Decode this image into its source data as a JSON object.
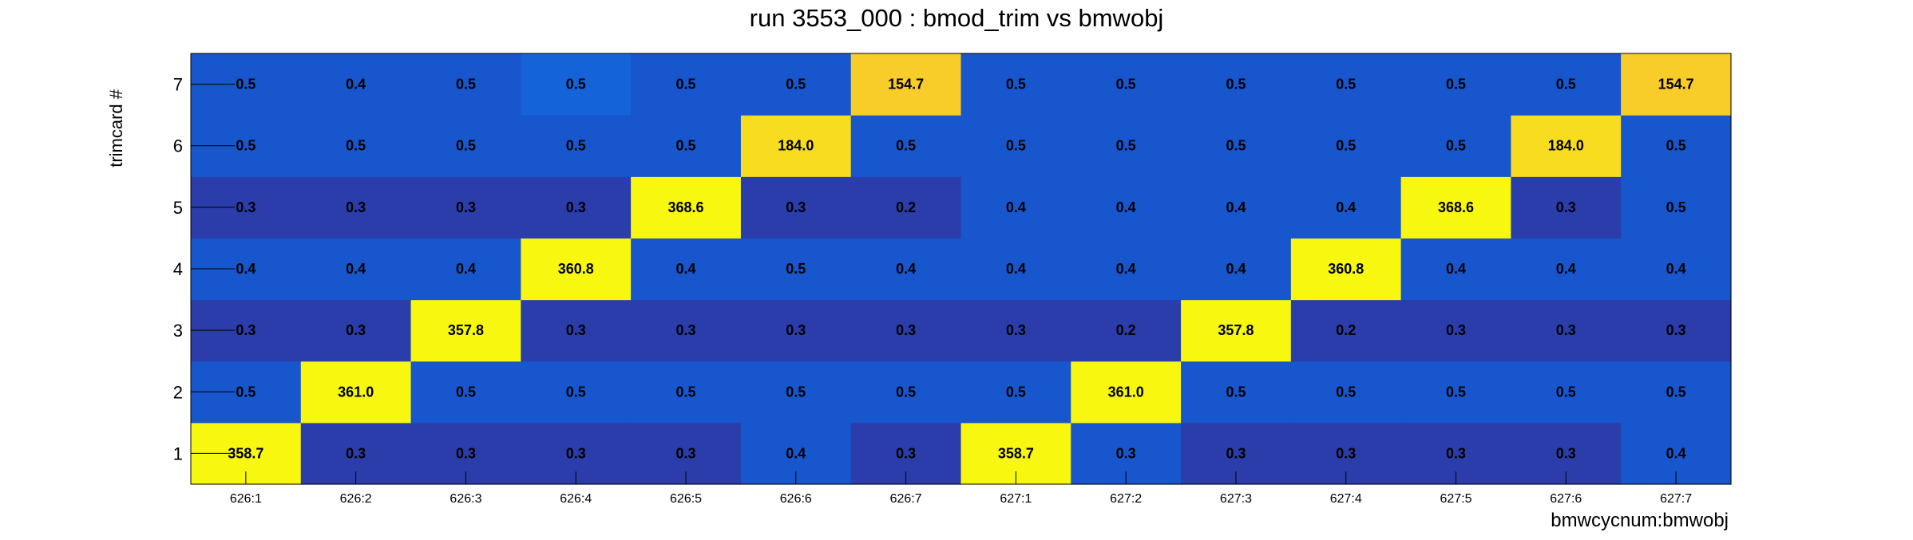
{
  "chart_data": {
    "type": "heatmap",
    "title": "run 3553_000 : bmod_trim vs bmwobj",
    "xlabel": "bmwcycnum:bmwobj",
    "ylabel": "trimcard #",
    "x_categories": [
      "626:1",
      "626:2",
      "626:3",
      "626:4",
      "626:5",
      "626:6",
      "626:7",
      "627:1",
      "627:2",
      "627:3",
      "627:4",
      "627:5",
      "627:6",
      "627:7"
    ],
    "y_categories": [
      "1",
      "2",
      "3",
      "4",
      "5",
      "6",
      "7"
    ],
    "values": [
      [
        "358.7",
        "0.3",
        "0.3",
        "0.3",
        "0.3",
        "0.4",
        "0.3",
        "358.7",
        "0.3",
        "0.3",
        "0.3",
        "0.3",
        "0.3",
        "0.4"
      ],
      [
        "0.5",
        "361.0",
        "0.5",
        "0.5",
        "0.5",
        "0.5",
        "0.5",
        "0.5",
        "361.0",
        "0.5",
        "0.5",
        "0.5",
        "0.5",
        "0.5"
      ],
      [
        "0.3",
        "0.3",
        "357.8",
        "0.3",
        "0.3",
        "0.3",
        "0.3",
        "0.3",
        "0.2",
        "357.8",
        "0.2",
        "0.3",
        "0.3",
        "0.3"
      ],
      [
        "0.4",
        "0.4",
        "0.4",
        "360.8",
        "0.4",
        "0.5",
        "0.4",
        "0.4",
        "0.4",
        "0.4",
        "360.8",
        "0.4",
        "0.4",
        "0.4"
      ],
      [
        "0.3",
        "0.3",
        "0.3",
        "0.3",
        "368.6",
        "0.3",
        "0.2",
        "0.4",
        "0.4",
        "0.4",
        "0.4",
        "368.6",
        "0.3",
        "0.5"
      ],
      [
        "0.5",
        "0.5",
        "0.5",
        "0.5",
        "0.5",
        "184.0",
        "0.5",
        "0.5",
        "0.5",
        "0.5",
        "0.5",
        "0.5",
        "184.0",
        "0.5"
      ],
      [
        "0.5",
        "0.4",
        "0.5",
        "0.5",
        "0.5",
        "0.5",
        "154.7",
        "0.5",
        "0.5",
        "0.5",
        "0.5",
        "0.5",
        "0.5",
        "154.7"
      ]
    ],
    "cell_colors": [
      [
        "#f7f710",
        "#2a3daa",
        "#2a3daa",
        "#2a3daa",
        "#2a3daa",
        "#1756cc",
        "#2a3daa",
        "#f7f710",
        "#1756cc",
        "#2a3daa",
        "#2a3daa",
        "#2a3daa",
        "#2a3daa",
        "#1756cc"
      ],
      [
        "#1756cc",
        "#f7f710",
        "#1756cc",
        "#1756cc",
        "#1756cc",
        "#1756cc",
        "#1756cc",
        "#1756cc",
        "#f7f710",
        "#1756cc",
        "#1756cc",
        "#1756cc",
        "#1756cc",
        "#1756cc"
      ],
      [
        "#2a3daa",
        "#2a3daa",
        "#f7f710",
        "#2a3daa",
        "#2a3daa",
        "#2a3daa",
        "#2a3daa",
        "#2a3daa",
        "#2a3daa",
        "#f7f710",
        "#2a3daa",
        "#2a3daa",
        "#2a3daa",
        "#2a3daa"
      ],
      [
        "#1756cc",
        "#1756cc",
        "#1756cc",
        "#f7f710",
        "#1756cc",
        "#1756cc",
        "#1756cc",
        "#1756cc",
        "#1756cc",
        "#1756cc",
        "#f7f710",
        "#1756cc",
        "#1756cc",
        "#1756cc"
      ],
      [
        "#2a3daa",
        "#2a3daa",
        "#2a3daa",
        "#2a3daa",
        "#f7f710",
        "#2a3daa",
        "#2a3daa",
        "#1756cc",
        "#1756cc",
        "#1756cc",
        "#1756cc",
        "#f7f710",
        "#2a3daa",
        "#1756cc"
      ],
      [
        "#1756cc",
        "#1756cc",
        "#1756cc",
        "#1756cc",
        "#1756cc",
        "#f8dc1f",
        "#1756cc",
        "#1756cc",
        "#1756cc",
        "#1756cc",
        "#1756cc",
        "#1756cc",
        "#f8dc1f",
        "#1756cc"
      ],
      [
        "#1756cc",
        "#1756cc",
        "#1756cc",
        "#1463d8",
        "#1756cc",
        "#1756cc",
        "#f8cd2a",
        "#1756cc",
        "#1756cc",
        "#1756cc",
        "#1756cc",
        "#1756cc",
        "#1756cc",
        "#f8cd2a"
      ]
    ],
    "grid": false,
    "legend": "none"
  }
}
